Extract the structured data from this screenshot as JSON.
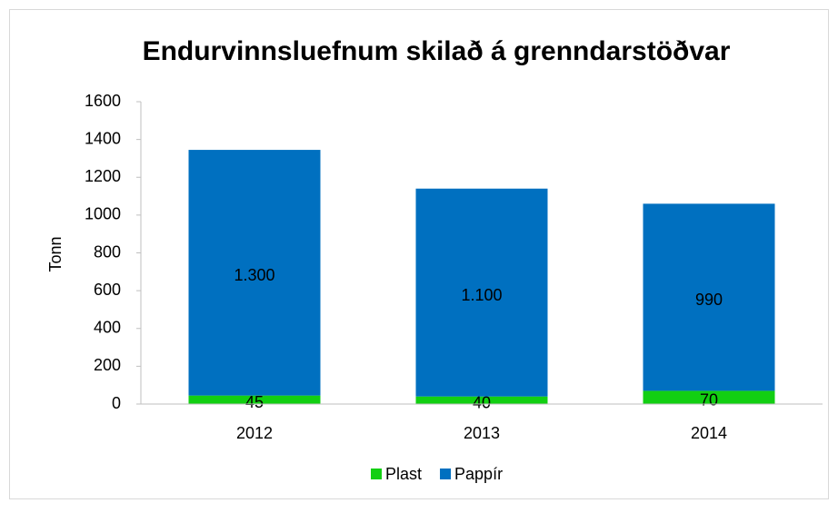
{
  "chart_data": {
    "type": "bar",
    "stacked": true,
    "title": "Endurvinnsluefnum skilað á grenndarstöðvar",
    "y_label": "Tonn",
    "categories": [
      "2012",
      "2013",
      "2014"
    ],
    "series": [
      {
        "name": "Plast",
        "color": "#12cf12",
        "values": [
          45,
          40,
          70
        ]
      },
      {
        "name": "Pappír",
        "color": "#0070c0",
        "values": [
          1300,
          1100,
          990
        ],
        "value_labels": [
          "1.300",
          "1.100",
          "990"
        ]
      }
    ],
    "ylim": [
      0,
      1600
    ],
    "yticks": [
      0,
      200,
      400,
      600,
      800,
      1000,
      1200,
      1400,
      1600
    ],
    "grid": false,
    "legend": "bottom"
  }
}
